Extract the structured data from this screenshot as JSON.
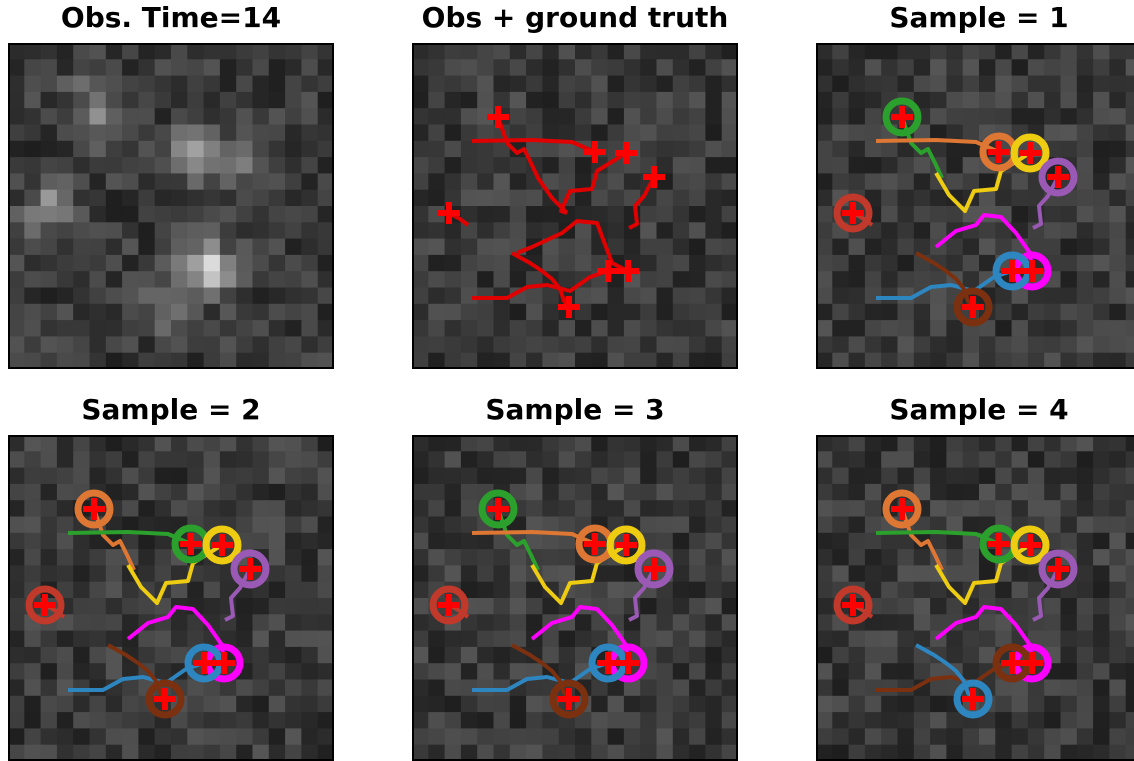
{
  "figure": {
    "panels": [
      {
        "id": "obs",
        "title": "Obs. Time=14",
        "kind": "observation"
      },
      {
        "id": "gt",
        "title": "Obs + ground truth",
        "kind": "ground-truth"
      },
      {
        "id": "s1",
        "title": "Sample = 1",
        "kind": "sample",
        "sample": 1
      },
      {
        "id": "s2",
        "title": "Sample = 2",
        "kind": "sample",
        "sample": 2
      },
      {
        "id": "s3",
        "title": "Sample = 3",
        "kind": "sample",
        "sample": 3
      },
      {
        "id": "s4",
        "title": "Sample = 4",
        "kind": "sample",
        "sample": 4
      }
    ],
    "colors": {
      "marker": "#ff0000",
      "ground_truth_track": "#e00000",
      "frame": "#000000",
      "background_noise": "#404040"
    },
    "track_colors": [
      "#2ca02c",
      "#dd7733",
      "#eecc11",
      "#9b59b6",
      "#c0392b",
      "#ff00ff",
      "#2e86c1",
      "#7b3010"
    ]
  }
}
